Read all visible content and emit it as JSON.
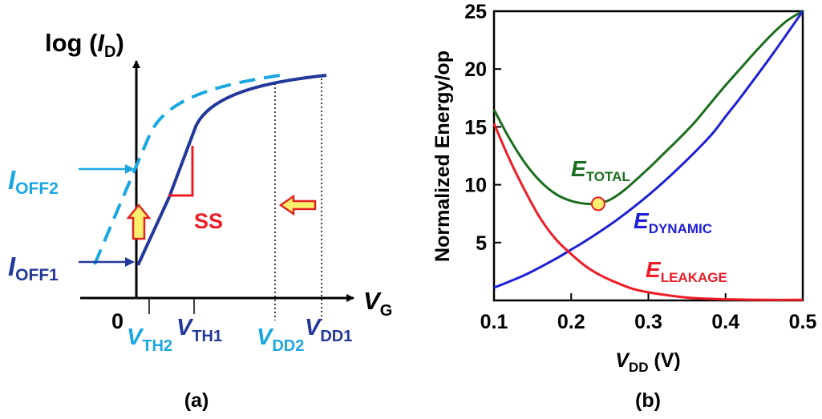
{
  "colors": {
    "dark_blue": "#23389b",
    "light_blue": "#1aa7e1",
    "red": "#ee1c25",
    "green": "#1b6e1f",
    "blue": "#1e1ed6",
    "marker_fill": "#ffef6e",
    "arrow_fill": "#ffef6e",
    "arrow_stroke": "#e0241f"
  },
  "panel_a": {
    "panel_label": "(a)",
    "y_axis": {
      "prefix": "log (",
      "var": "I",
      "sub": "D",
      "suffix": ")"
    },
    "x_axis": {
      "var": "V",
      "sub": "G"
    },
    "origin_label": "0",
    "current_labels": [
      {
        "var": "I",
        "sub": "OFF2"
      },
      {
        "var": "I",
        "sub": "OFF1"
      }
    ],
    "voltage_labels": [
      {
        "var": "V",
        "sub": "TH2"
      },
      {
        "var": "V",
        "sub": "TH1"
      },
      {
        "var": "V",
        "sub": "DD2"
      },
      {
        "var": "V",
        "sub": "DD1"
      }
    ],
    "slope_label": "SS"
  },
  "chart_data": {
    "type": "line",
    "panel_label": "(b)",
    "ylabel": "Normalized Energy/op",
    "xlabel": {
      "var": "V",
      "sub": "DD",
      "unit": " (V)"
    },
    "xlim": [
      0.1,
      0.5
    ],
    "ylim": [
      0,
      25
    ],
    "xticks": [
      0.1,
      0.2,
      0.3,
      0.4,
      0.5
    ],
    "yticks": [
      5,
      10,
      15,
      20,
      25
    ],
    "grid": false,
    "series": [
      {
        "name": {
          "var": "E",
          "sub": "TOTAL"
        },
        "color": "#1b6e1f",
        "x": [
          0.1,
          0.12,
          0.14,
          0.16,
          0.18,
          0.2,
          0.22,
          0.235,
          0.25,
          0.27,
          0.3,
          0.32,
          0.34,
          0.36,
          0.38,
          0.4,
          0.42,
          0.44,
          0.46,
          0.48,
          0.5
        ],
        "y": [
          16.5,
          14.0,
          11.9,
          10.3,
          9.2,
          8.6,
          8.35,
          8.4,
          8.7,
          9.6,
          11.4,
          12.7,
          14.0,
          15.4,
          17.0,
          18.6,
          20.1,
          21.6,
          23.0,
          24.2,
          25.0
        ]
      },
      {
        "name": {
          "var": "E",
          "sub": "DYNAMIC"
        },
        "color": "#1e1ed6",
        "x": [
          0.1,
          0.14,
          0.18,
          0.2,
          0.22,
          0.26,
          0.3,
          0.34,
          0.38,
          0.4,
          0.42,
          0.46,
          0.5
        ],
        "y": [
          1.1,
          2.2,
          3.6,
          4.4,
          5.2,
          7.0,
          9.1,
          11.5,
          14.2,
          15.9,
          17.6,
          21.2,
          25.0
        ]
      },
      {
        "name": {
          "var": "E",
          "sub": "LEAKAGE"
        },
        "color": "#ee1c25",
        "x": [
          0.1,
          0.12,
          0.14,
          0.16,
          0.18,
          0.2,
          0.22,
          0.24,
          0.26,
          0.28,
          0.3,
          0.33,
          0.36,
          0.4,
          0.45,
          0.5
        ],
        "y": [
          15.3,
          12.2,
          9.5,
          7.1,
          5.3,
          4.0,
          2.9,
          2.1,
          1.5,
          1.0,
          0.7,
          0.4,
          0.2,
          0.1,
          0.05,
          0.05
        ]
      }
    ],
    "marker": {
      "x": 0.235,
      "y": 8.35
    }
  }
}
